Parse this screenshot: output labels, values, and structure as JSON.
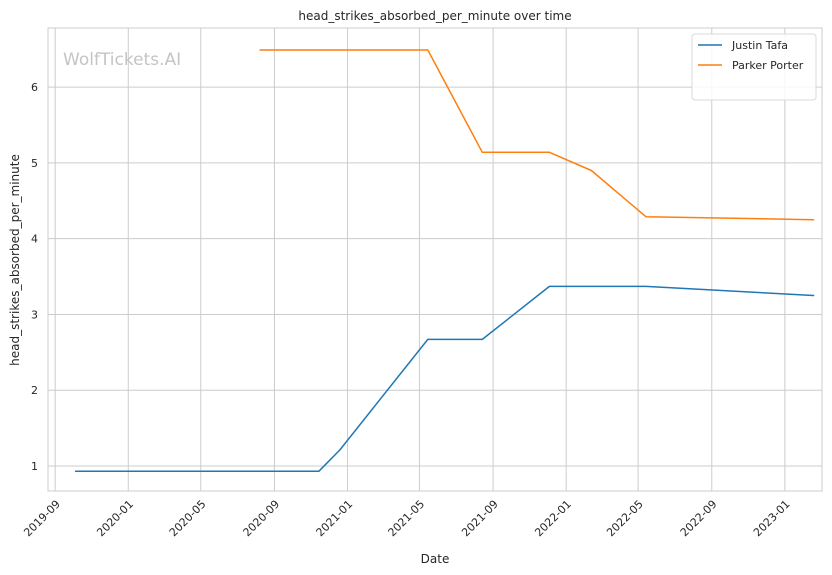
{
  "chart_data": {
    "type": "line",
    "title": "head_strikes_absorbed_per_minute over time",
    "xlabel": "Date",
    "ylabel": "head_strikes_absorbed_per_minute",
    "watermark": "WolfTickets.AI",
    "x_ticks": [
      "2019-09",
      "2020-01",
      "2020-05",
      "2020-09",
      "2021-01",
      "2021-05",
      "2021-09",
      "2022-01",
      "2022-05",
      "2022-09",
      "2023-01"
    ],
    "y_ticks": [
      1,
      2,
      3,
      4,
      5,
      6
    ],
    "xlim": [
      "2019-08-20",
      "2023-03-04"
    ],
    "ylim": [
      0.67,
      6.78
    ],
    "grid": true,
    "legend_position": "top-right",
    "series": [
      {
        "name": "Justin Tafa",
        "color": "#1f77b4",
        "points": [
          {
            "x": "2019-10-05",
            "y": 0.93
          },
          {
            "x": "2020-11-14",
            "y": 0.93
          },
          {
            "x": "2020-12-19",
            "y": 1.21
          },
          {
            "x": "2021-05-15",
            "y": 2.67
          },
          {
            "x": "2021-08-14",
            "y": 2.67
          },
          {
            "x": "2021-12-04",
            "y": 3.37
          },
          {
            "x": "2022-05-14",
            "y": 3.37
          },
          {
            "x": "2023-02-18",
            "y": 3.25
          }
        ]
      },
      {
        "name": "Parker Porter",
        "color": "#ff7f0e",
        "points": [
          {
            "x": "2020-08-08",
            "y": 6.49
          },
          {
            "x": "2021-05-15",
            "y": 6.49
          },
          {
            "x": "2021-08-14",
            "y": 5.14
          },
          {
            "x": "2021-12-04",
            "y": 5.14
          },
          {
            "x": "2022-02-12",
            "y": 4.9
          },
          {
            "x": "2022-05-14",
            "y": 4.29
          },
          {
            "x": "2023-02-18",
            "y": 4.25
          }
        ]
      }
    ]
  }
}
